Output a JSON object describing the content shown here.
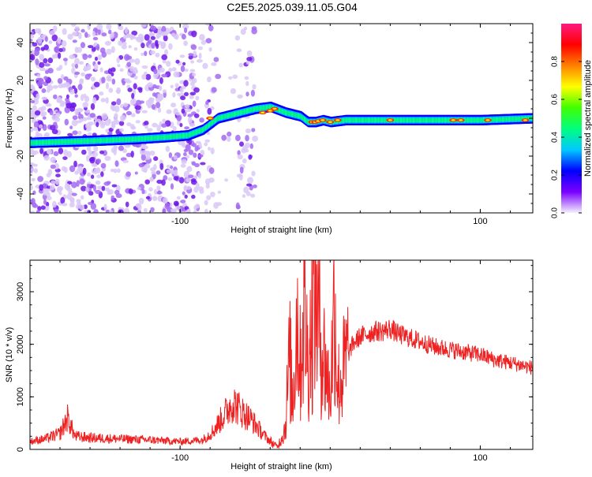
{
  "title": "C2E5.2025.039.11.05.G04",
  "chart_data": [
    {
      "type": "heatmap",
      "xlabel": "Height of straight line (km)",
      "ylabel": "Frequency (Hz)",
      "xlim": [
        -200,
        135
      ],
      "ylim": [
        -50,
        50
      ],
      "xticks": [
        -100,
        100
      ],
      "yticks": [
        40,
        20,
        0,
        -20,
        -40
      ],
      "colorbar": {
        "label": "Normalized spectral amplitude",
        "range": [
          0,
          1
        ],
        "ticks": [
          "0.0",
          "0.2",
          "0.4",
          "0.6",
          "0.8"
        ],
        "colormap": [
          "#f5f0ff",
          "#7a00ff",
          "#0000ff",
          "#00c8ff",
          "#00ff80",
          "#40ff00",
          "#ffff00",
          "#ff8000",
          "#ff0000",
          "#ff1a80"
        ]
      },
      "ridge": {
        "x": [
          -200,
          -160,
          -130,
          -110,
          -95,
          -85,
          -75,
          -60,
          -50,
          -40,
          -30,
          -20,
          -15,
          -10,
          -5,
          0,
          10,
          30,
          60,
          85,
          100,
          135
        ],
        "y": [
          -13,
          -12,
          -11,
          -10,
          -9,
          -6,
          0,
          3,
          5,
          6,
          3,
          1,
          -2,
          -2,
          -1,
          -2,
          -1,
          -1,
          -1,
          -1,
          -1,
          0
        ]
      },
      "noise_region_x": [
        -200,
        -50
      ]
    },
    {
      "type": "line",
      "xlabel": "Height of straight line (km)",
      "ylabel": "SNR (10 * v/v)",
      "xlim": [
        -200,
        135
      ],
      "ylim": [
        0,
        3600
      ],
      "xticks": [
        -100,
        100
      ],
      "yticks": [
        0,
        1000,
        2000,
        3000
      ],
      "color": "#ee2222",
      "series": [
        {
          "x": [
            -200,
            -190,
            -180,
            -175,
            -170,
            -160,
            -140,
            -120,
            -100,
            -85,
            -78,
            -72,
            -65,
            -58,
            -52,
            -45,
            -40,
            -35,
            -30,
            -27,
            -25,
            -22,
            -20,
            -17,
            -15,
            -12,
            -10,
            -8,
            -5,
            -2,
            0,
            3,
            5,
            8,
            10,
            12,
            15,
            20,
            25,
            30,
            35,
            40,
            45,
            50,
            60,
            70,
            80,
            90,
            100,
            105,
            110,
            120,
            135
          ],
          "y": [
            150,
            200,
            300,
            600,
            250,
            220,
            200,
            180,
            150,
            180,
            350,
            600,
            900,
            700,
            550,
            300,
            150,
            50,
            400,
            1800,
            900,
            2600,
            1600,
            2800,
            1700,
            2400,
            3300,
            2500,
            1900,
            1400,
            1000,
            2900,
            1200,
            1400,
            1600,
            1800,
            2000,
            2150,
            2200,
            2250,
            2250,
            2300,
            2200,
            2150,
            2050,
            1950,
            1900,
            1850,
            1800,
            1750,
            1700,
            1650,
            1550
          ]
        }
      ]
    }
  ]
}
